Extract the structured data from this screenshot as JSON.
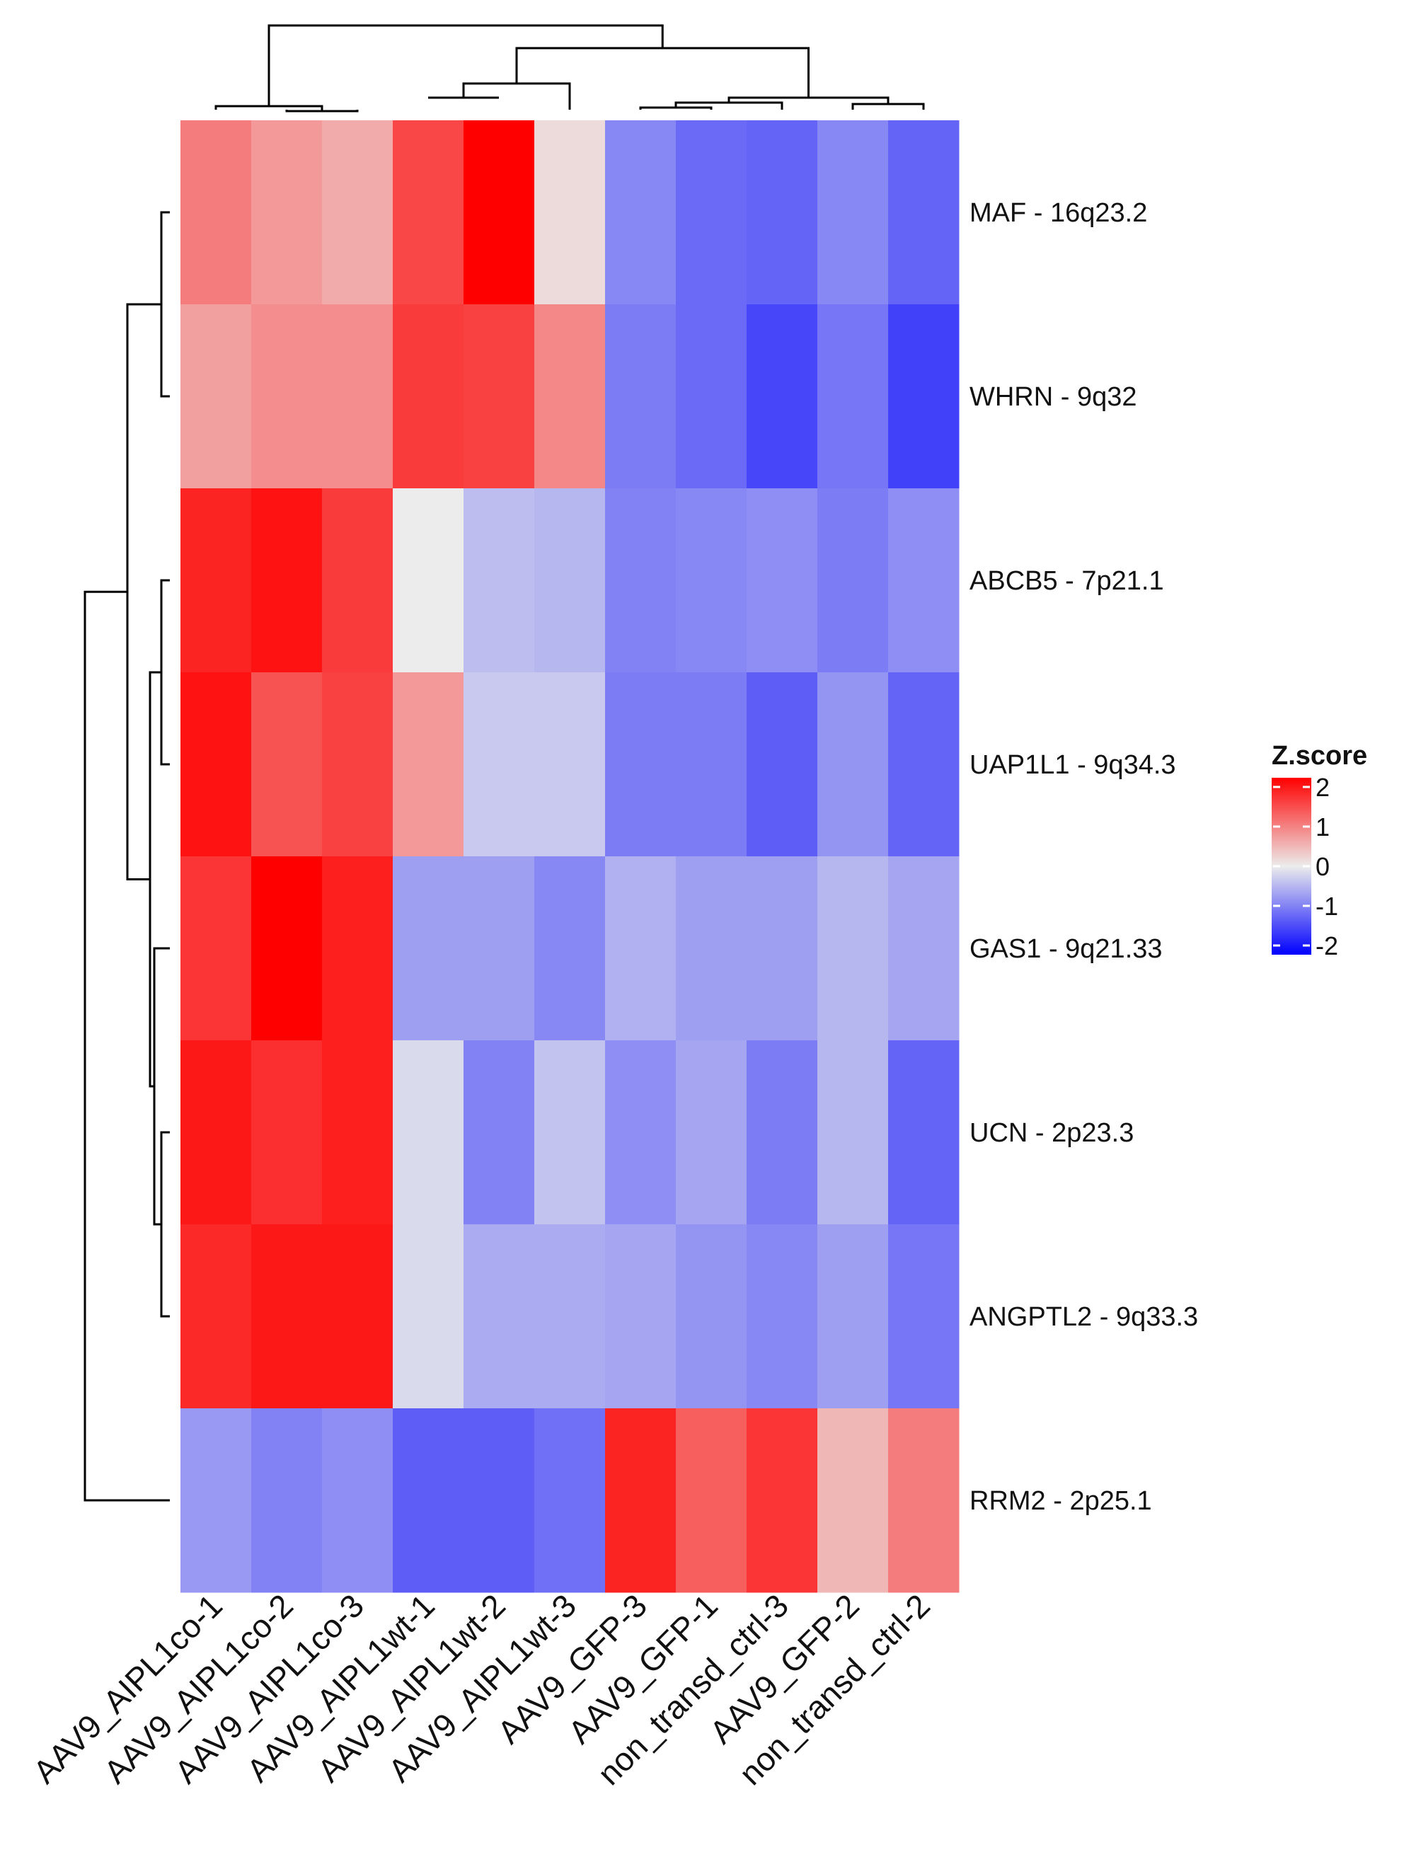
{
  "chart_data": {
    "type": "heatmap",
    "title": "",
    "legend": {
      "title": "Z.score",
      "ticks": [
        2,
        1,
        0,
        -1,
        -2
      ],
      "colors": {
        "low": "#0000ff",
        "mid": "#ececec",
        "high": "#ff0000"
      },
      "range": [
        -2,
        2
      ],
      "placement": "right"
    },
    "columns": [
      "AAV9_AIPL1co-1",
      "AAV9_AIPL1co-2",
      "AAV9_AIPL1co-3",
      "AAV9_AIPL1wt-1",
      "AAV9_AIPL1wt-2",
      "AAV9_AIPL1wt-3",
      "AAV9_GFP-3",
      "AAV9_GFP-1",
      "non_transd_ctrl-3",
      "AAV9_GFP-2",
      "non_transd_ctrl-2"
    ],
    "rows": [
      "MAF - 16q23.2",
      "WHRN - 9q32",
      "ABCB5 - 7p21.1",
      "UAP1L1 - 9q34.3",
      "GAS1 - 9q21.33",
      "UCN - 2p23.3",
      "ANGPTL2 - 9q33.3",
      "RRM2 - 2p25.1"
    ],
    "values": [
      [
        0.95,
        0.7,
        0.55,
        1.4,
        2.0,
        0.15,
        -0.85,
        -1.1,
        -1.15,
        -0.85,
        -1.15
      ],
      [
        0.65,
        0.8,
        0.8,
        1.5,
        1.45,
        0.85,
        -0.95,
        -1.1,
        -1.4,
        -1.0,
        -1.45
      ],
      [
        1.7,
        1.85,
        1.5,
        0.0,
        -0.4,
        -0.45,
        -0.9,
        -0.85,
        -0.8,
        -0.95,
        -0.8
      ],
      [
        1.85,
        1.3,
        1.45,
        0.7,
        -0.3,
        -0.3,
        -0.95,
        -0.95,
        -1.2,
        -0.75,
        -1.15
      ],
      [
        1.55,
        2.2,
        1.75,
        -0.65,
        -0.65,
        -0.85,
        -0.5,
        -0.65,
        -0.65,
        -0.45,
        -0.6
      ],
      [
        1.8,
        1.6,
        1.75,
        -0.15,
        -0.9,
        -0.35,
        -0.8,
        -0.6,
        -0.95,
        -0.45,
        -1.15
      ],
      [
        1.65,
        1.8,
        1.8,
        -0.15,
        -0.55,
        -0.55,
        -0.6,
        -0.75,
        -0.85,
        -0.65,
        -1.0
      ],
      [
        -0.7,
        -0.9,
        -0.8,
        -1.2,
        -1.2,
        -1.05,
        1.7,
        1.2,
        1.55,
        0.45,
        0.95
      ]
    ]
  }
}
